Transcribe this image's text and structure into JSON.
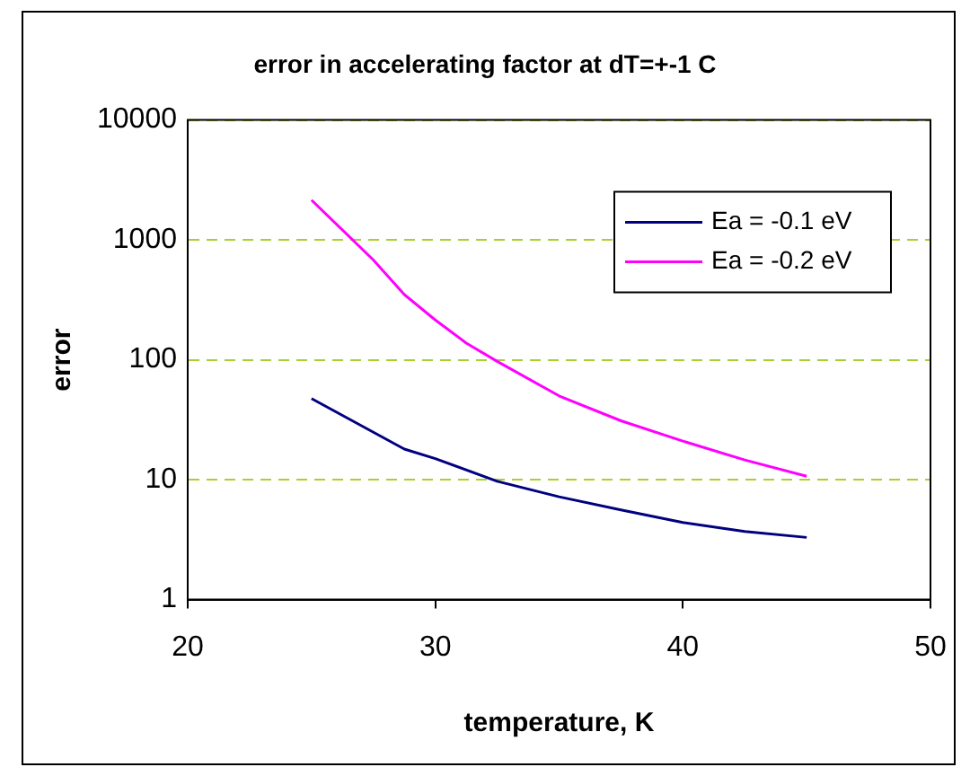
{
  "chart_data": {
    "type": "line",
    "title": "error in accelerating factor at dT=+-1 C",
    "xlabel": "temperature, K",
    "ylabel": "error",
    "log": "y",
    "grid": "y",
    "legend": "top right",
    "marker": "none",
    "line_style": "solid",
    "xlim": [
      20,
      50
    ],
    "xticks": [
      20,
      30,
      40,
      50
    ],
    "ylim": [
      1,
      10000
    ],
    "yticks": [
      1,
      10,
      100,
      1000,
      10000
    ],
    "series": [
      {
        "name": "Ea = -0.1 eV",
        "color": "#000080",
        "x": [
          25,
          28.75,
          30,
          32.5,
          35,
          37.5,
          40,
          42.5,
          45
        ],
        "values": [
          47.5,
          18,
          15,
          9.7,
          7.2,
          5.6,
          4.4,
          3.7,
          3.3
        ]
      },
      {
        "name": "Ea = -0.2 eV",
        "color": "#ff00ff",
        "x": [
          25,
          27.5,
          28.75,
          30,
          31.25,
          32.5,
          35,
          37.5,
          40,
          42.5,
          45
        ],
        "values": [
          2150,
          680,
          350,
          215,
          138,
          97,
          50,
          31,
          21,
          14.6,
          10.7
        ]
      }
    ]
  }
}
